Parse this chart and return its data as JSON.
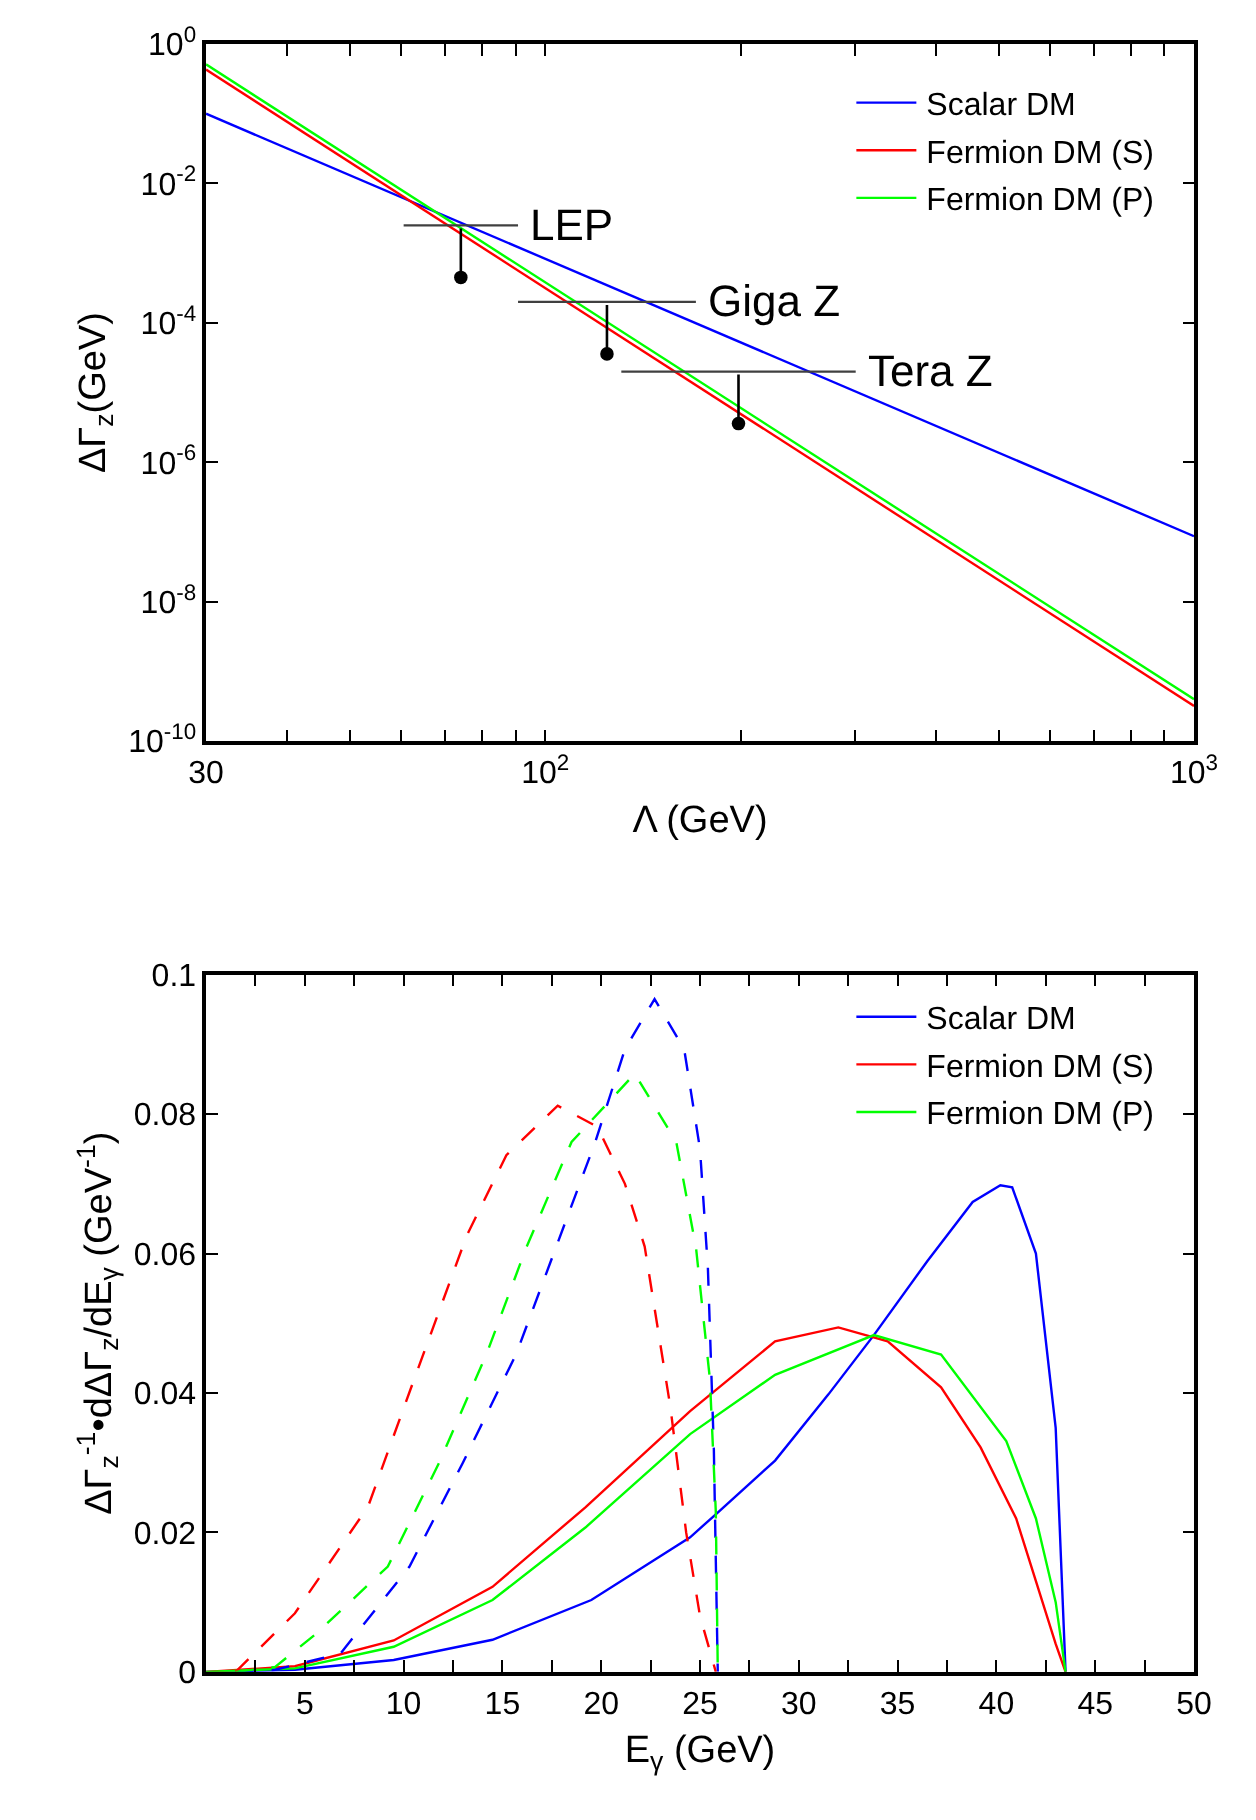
{
  "chart_data": [
    {
      "type": "line",
      "xlabel": "Λ (GeV)",
      "ylabel": "ΔΓ$_{z}$(GeV)",
      "log": "xy",
      "legend": "top right",
      "xlim": [
        30,
        1000
      ],
      "ylim": [
        1e-10,
        1
      ],
      "xticks": [
        30,
        {
          "value": 40,
          "label": null
        },
        {
          "value": 50,
          "label": null
        },
        {
          "value": 60,
          "label": null
        },
        {
          "value": 70,
          "label": null
        },
        {
          "value": 80,
          "label": null
        },
        {
          "value": 90,
          "label": null
        },
        {
          "value": 100,
          "label": "10$^{2}$"
        },
        {
          "value": 200,
          "label": null
        },
        {
          "value": 300,
          "label": null
        },
        {
          "value": 400,
          "label": null
        },
        {
          "value": 500,
          "label": null
        },
        {
          "value": 600,
          "label": null
        },
        {
          "value": 700,
          "label": null
        },
        {
          "value": 800,
          "label": null
        },
        {
          "value": 900,
          "label": null
        },
        {
          "value": 1000,
          "label": "10$^{3}$"
        }
      ],
      "yticks": [
        {
          "value": 1e-10,
          "label": "10$^{-10}$"
        },
        {
          "value": 1e-08,
          "label": "10$^{-8}$"
        },
        {
          "value": 1e-06,
          "label": "10$^{-6}$"
        },
        {
          "value": 0.0001,
          "label": "10$^{-4}$"
        },
        {
          "value": 0.01,
          "label": "10$^{-2}$"
        },
        {
          "value": 1,
          "label": "10$^{0}$"
        }
      ],
      "annotations": [
        {
          "text": "LEP",
          "x": 90.8,
          "y": 0.0025
        },
        {
          "text": "Giga Z",
          "x": 170.7,
          "y": 0.0002
        },
        {
          "text": "Tera Z",
          "x": 301,
          "y": 2e-05
        }
      ],
      "series": [
        {
          "name": "Scalar DM",
          "color": "#0000ff",
          "x": [
            30,
            1000
          ],
          "values": [
            0.1,
            8.7e-08
          ]
        },
        {
          "name": "Fermion DM (S)",
          "color": "#ff0000",
          "x": [
            30,
            1000
          ],
          "values": [
            0.43,
            3.2e-10
          ]
        },
        {
          "name": "Fermion DM (P)",
          "color": "#00ff00",
          "x": [
            30,
            1000
          ],
          "values": [
            0.51,
            4e-10
          ]
        },
        {
          "color": "#404040",
          "x": [
            60.5,
            90.8
          ],
          "values": [
            0.0025,
            0.0025
          ]
        },
        {
          "color": "#404040",
          "x": [
            90.8,
            170.7
          ],
          "values": [
            0.0002,
            0.0002
          ]
        },
        {
          "color": "#404040",
          "x": [
            131,
            301
          ],
          "values": [
            2e-05,
            2e-05
          ]
        }
      ]
    },
    {
      "type": "line",
      "xlabel": "E$_{γ}$ (GeV)",
      "ylabel": "ΔΓ$_{z}$$^{-1}$•dΔΓ$_{z}$/dE$_{γ}$ (GeV$^{-1}$)",
      "legend": "top right",
      "xlim": [
        0,
        50
      ],
      "ylim": [
        0,
        0.1
      ],
      "xticks": [
        {
          "value": 2.5,
          "label": null
        },
        5,
        {
          "value": 7.5,
          "label": null
        },
        10,
        {
          "value": 12.5,
          "label": null
        },
        15,
        {
          "value": 17.5,
          "label": null
        },
        20,
        {
          "value": 22.5,
          "label": null
        },
        25,
        {
          "value": 27.5,
          "label": null
        },
        30,
        {
          "value": 32.5,
          "label": null
        },
        35,
        {
          "value": 37.5,
          "label": null
        },
        40,
        {
          "value": 42.5,
          "label": null
        },
        45,
        {
          "value": 47.5,
          "label": null
        },
        50
      ],
      "yticks": [
        0,
        0.02,
        0.04,
        0.06,
        0.08,
        0.1
      ],
      "series": [
        {
          "name": "Scalar DM",
          "color": "#0000ff",
          "line_style": "solid",
          "x": [
            0,
            4.5,
            9.5,
            14.5,
            19.5,
            24.5,
            25.8,
            28.8,
            31.5,
            33.8,
            36.5,
            38.8,
            40.2,
            40.8,
            42,
            43,
            43.5
          ],
          "values": [
            0,
            0.0003,
            0.0017,
            0.0046,
            0.0103,
            0.0193,
            0.0226,
            0.0303,
            0.0398,
            0.0483,
            0.0589,
            0.0674,
            0.0698,
            0.0695,
            0.06,
            0.035,
            0
          ]
        },
        {
          "name": "Fermion DM (S)",
          "color": "#ff0000",
          "line_style": "solid",
          "x": [
            0,
            4.5,
            9.5,
            14.5,
            19.2,
            24.5,
            28.8,
            32,
            34.5,
            37.2,
            39.2,
            41,
            42,
            43,
            43.5
          ],
          "values": [
            0,
            0.0008,
            0.0045,
            0.0122,
            0.0236,
            0.0374,
            0.0474,
            0.0494,
            0.0474,
            0.0408,
            0.0322,
            0.022,
            0.013,
            0.004,
            0
          ]
        },
        {
          "name": "Fermion DM (P)",
          "color": "#00ff00",
          "line_style": "solid",
          "x": [
            0,
            4.5,
            9.5,
            14.5,
            19.2,
            24.5,
            28.8,
            33.8,
            37.2,
            40.5,
            42,
            43,
            43.5
          ],
          "values": [
            0,
            0.0005,
            0.0036,
            0.0103,
            0.0207,
            0.0341,
            0.0426,
            0.0483,
            0.0455,
            0.0331,
            0.022,
            0.01,
            0
          ]
        },
        {
          "color": "#0000ff",
          "line_style": "dashed",
          "x": [
            1.5,
            3.5,
            6.8,
            10.3,
            13,
            15.7,
            17.7,
            19.7,
            21.2,
            22.7,
            24.2,
            25,
            25.4,
            25.7,
            25.9
          ],
          "values": [
            0,
            0.0003,
            0.0026,
            0.0151,
            0.03,
            0.0456,
            0.0608,
            0.076,
            0.0893,
            0.0965,
            0.0893,
            0.075,
            0.0579,
            0.032,
            0
          ]
        },
        {
          "color": "#ff0000",
          "line_style": "dashed",
          "x": [
            1.5,
            4.5,
            8.2,
            10.5,
            13.2,
            15.2,
            17.8,
            19.8,
            21.2,
            22.2,
            23.5,
            24.3,
            25,
            25.8
          ],
          "values": [
            0,
            0.0084,
            0.0237,
            0.0417,
            0.0626,
            0.0741,
            0.0812,
            0.0782,
            0.07,
            0.061,
            0.038,
            0.02,
            0.008,
            0
          ]
        },
        {
          "color": "#00ff00",
          "line_style": "dashed",
          "x": [
            1.5,
            3.5,
            5.5,
            9.2,
            11.8,
            14.2,
            16.2,
            18.5,
            21.7,
            23.8,
            24.8,
            25.5,
            25.8,
            25.9
          ],
          "values": [
            0,
            0.0007,
            0.0053,
            0.0151,
            0.03,
            0.0456,
            0.0608,
            0.076,
            0.0858,
            0.076,
            0.0608,
            0.042,
            0.023,
            0
          ]
        }
      ]
    }
  ]
}
